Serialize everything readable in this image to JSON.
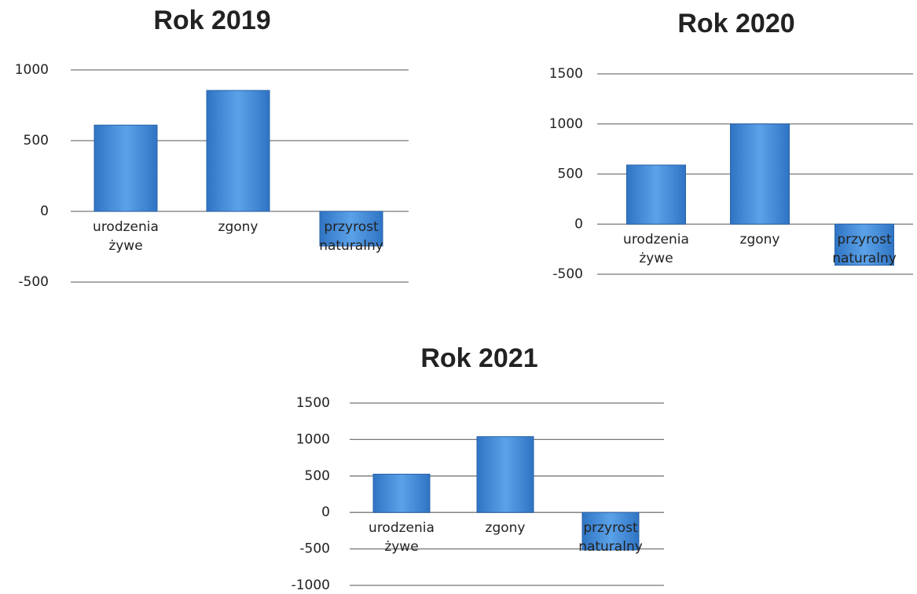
{
  "chart_data": [
    {
      "type": "bar",
      "title": "Rok 2019",
      "categories": [
        "urodzenia żywe",
        "zgony",
        "przyrost naturalny"
      ],
      "values": [
        610,
        855,
        -245
      ],
      "color": "#3d85d1",
      "ylim": [
        -500,
        1000
      ],
      "yticks": [
        -500,
        0,
        500,
        1000
      ],
      "grid": true
    },
    {
      "type": "bar",
      "title": "Rok 2020",
      "categories": [
        "urodzenia żywe",
        "zgony",
        "przyrost naturalny"
      ],
      "values": [
        590,
        1000,
        -410
      ],
      "color": "#3d85d1",
      "ylim": [
        -500,
        1500
      ],
      "yticks": [
        -500,
        0,
        500,
        1000,
        1500
      ],
      "grid": true
    },
    {
      "type": "bar",
      "title": "Rok 2021",
      "categories": [
        "urodzenia żywe",
        "zgony",
        "przyrost naturalny"
      ],
      "values": [
        525,
        1040,
        -515
      ],
      "color": "#3d85d1",
      "ylim": [
        -1000,
        1500
      ],
      "yticks": [
        -1000,
        -500,
        0,
        500,
        1000,
        1500
      ],
      "grid": true
    }
  ]
}
